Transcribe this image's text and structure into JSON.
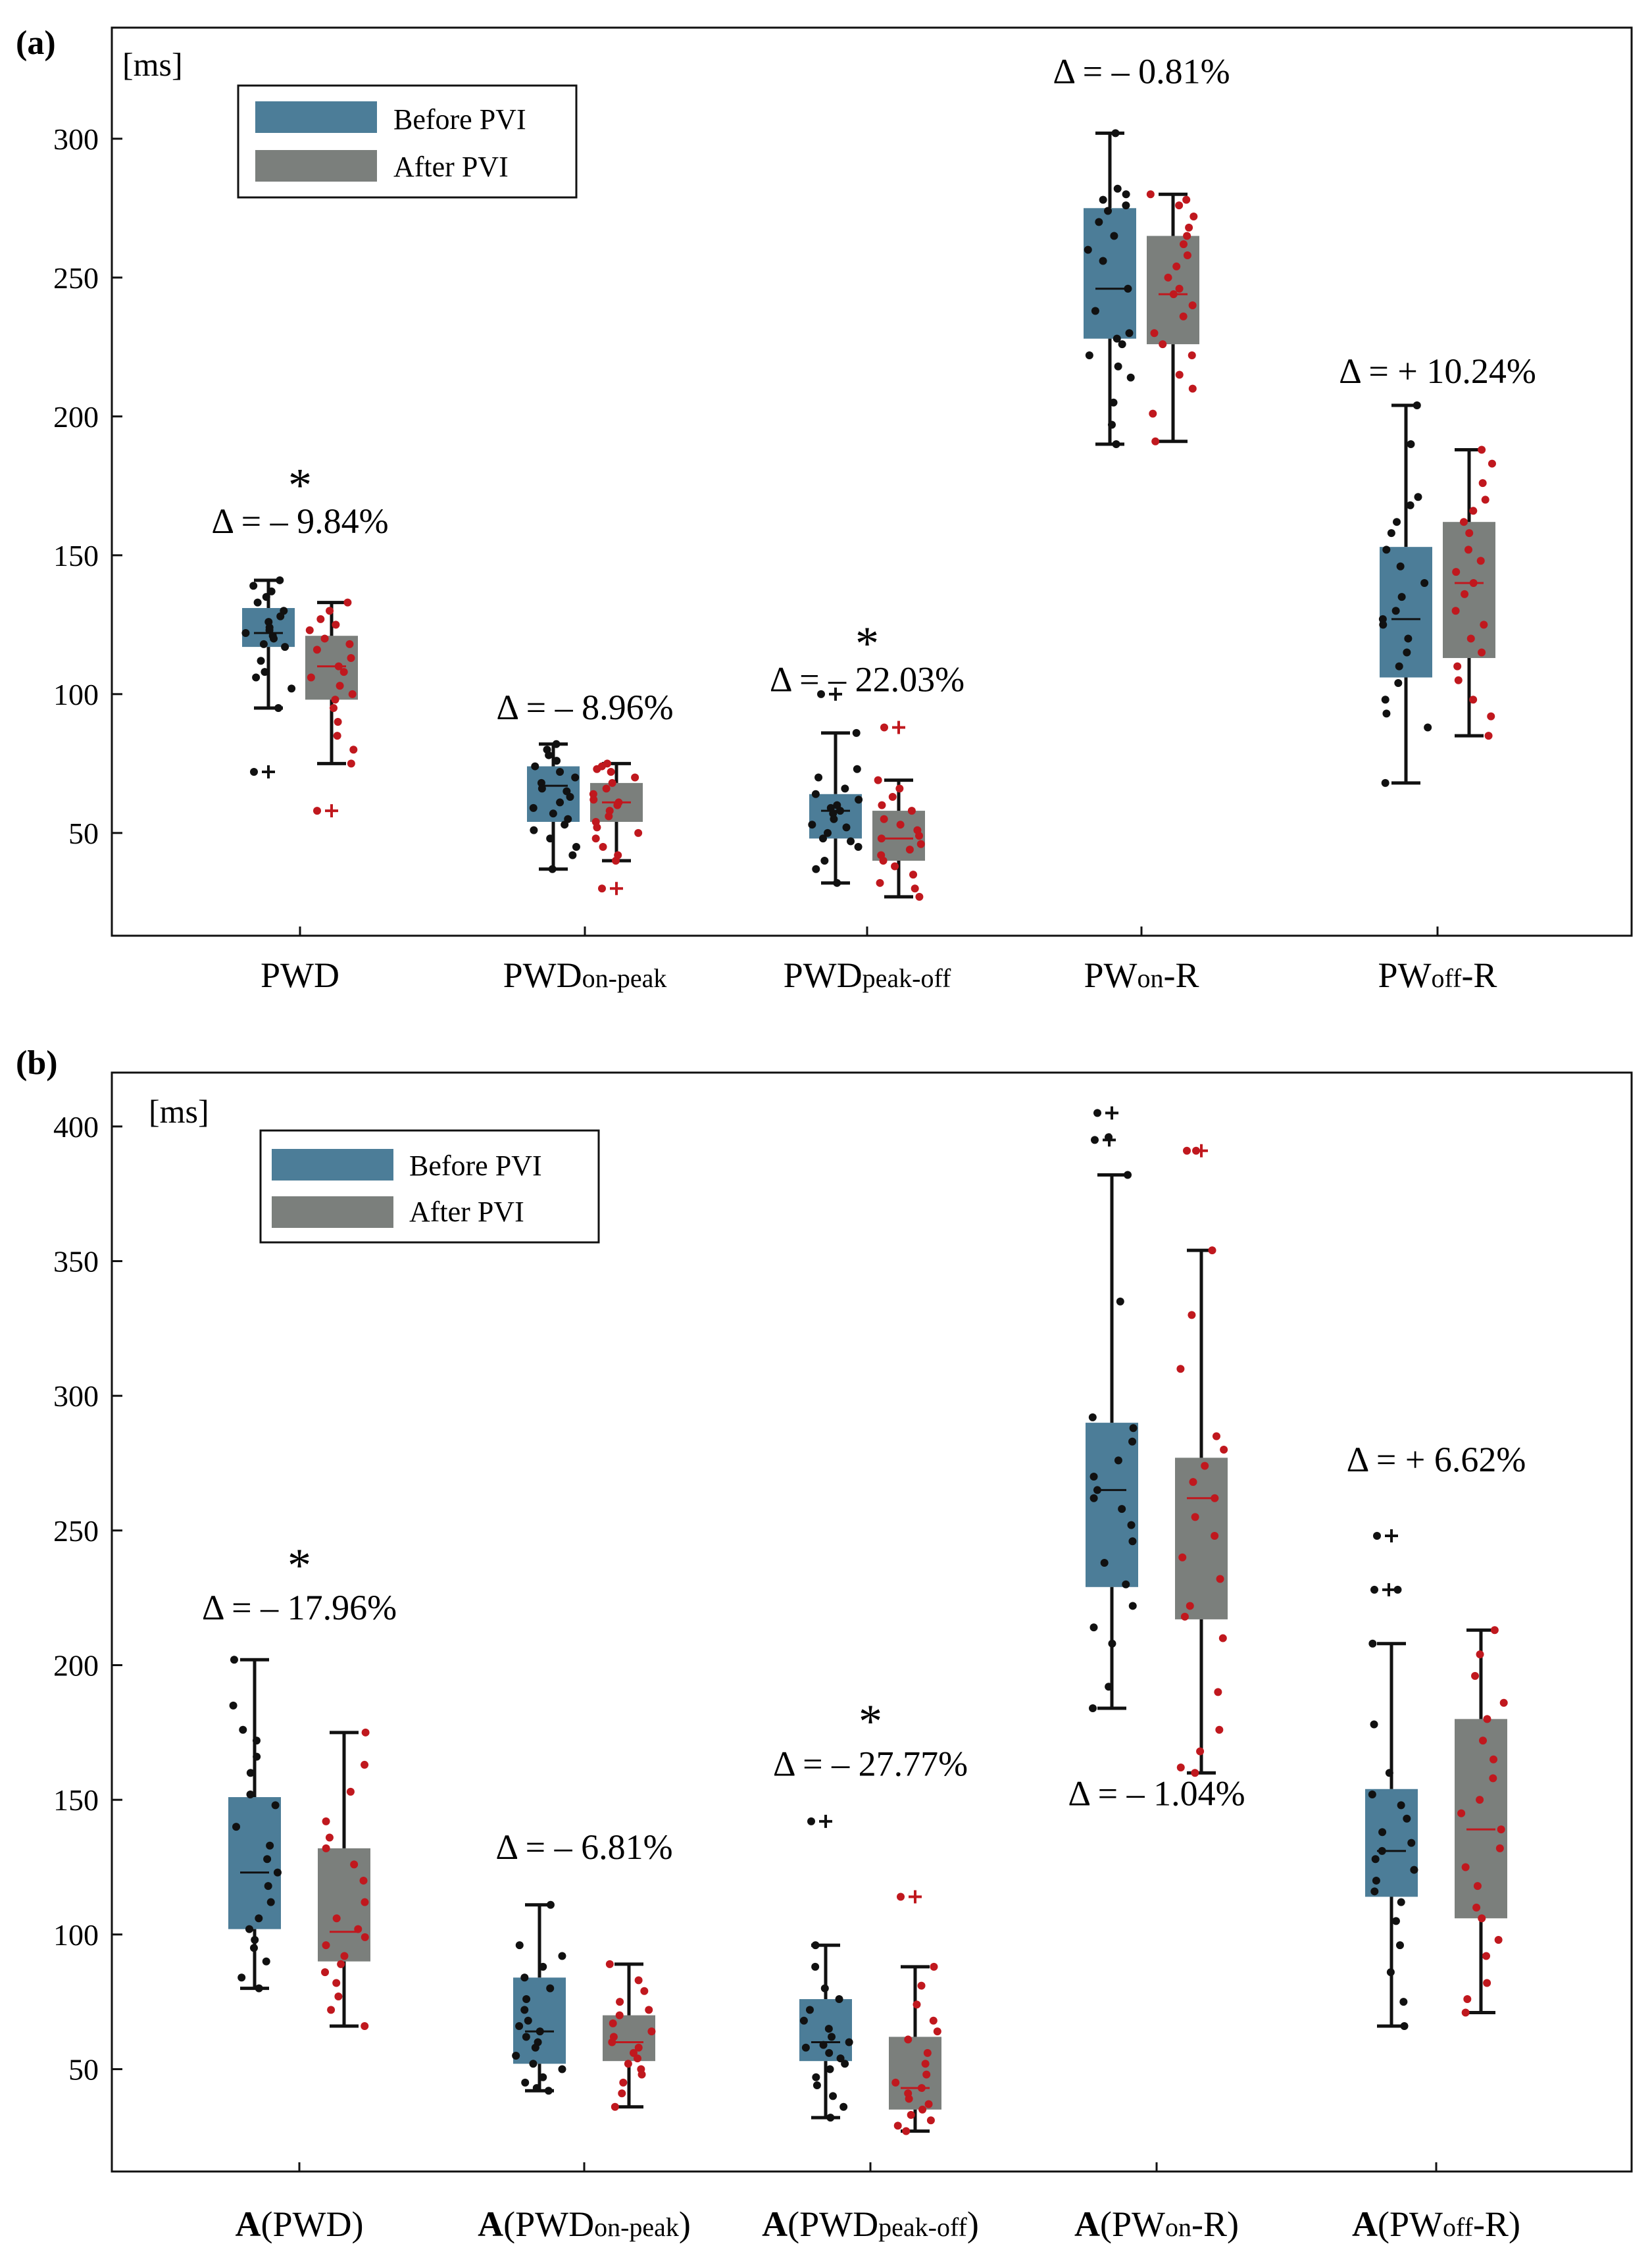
{
  "chart_data": [
    {
      "type": "boxplot",
      "panel_label": "(a)",
      "unit_label": "[ms]",
      "ylim": [
        13,
        340
      ],
      "yticks": [
        50,
        100,
        150,
        200,
        250,
        300
      ],
      "legend": {
        "position": "top-left",
        "entries": [
          "Before PVI",
          "After PVI"
        ]
      },
      "categories": [
        {
          "main": "PWD",
          "sub": "",
          "suffix": ""
        },
        {
          "main": "PWD",
          "sub": "on-peak",
          "suffix": ""
        },
        {
          "main": "PWD",
          "sub": "peak-off",
          "suffix": ""
        },
        {
          "main": "PW",
          "sub": "on",
          "suffix": "-R"
        },
        {
          "main": "PW",
          "sub": "off",
          "suffix": "-R"
        }
      ],
      "deltas": [
        {
          "text": "Δ = – 9.84%",
          "y": 158,
          "star": true,
          "star_y": 178
        },
        {
          "text": "Δ = – 8.96%",
          "y": 91,
          "star": false
        },
        {
          "text": "Δ = – 22.03%",
          "y": 101,
          "star": true,
          "star_y": 121
        },
        {
          "text": "Δ = – 0.81%",
          "y": 320,
          "star": false
        },
        {
          "text": "Δ = + 10.24%",
          "y": 212,
          "star": false
        }
      ],
      "series": [
        {
          "name": "Before PVI",
          "boxes": [
            {
              "q1": 117,
              "median": 122,
              "q3": 131,
              "wlo": 95,
              "whi": 141,
              "outliers": [
                72
              ],
              "points": [
                139,
                141,
                137,
                135,
                133,
                130,
                128,
                126,
                124,
                123,
                122,
                121,
                120,
                118,
                117,
                112,
                108,
                106,
                102,
                95
              ]
            },
            {
              "q1": 54,
              "median": 67,
              "q3": 74,
              "wlo": 37,
              "whi": 82,
              "outliers": [],
              "points": [
                82,
                80,
                78,
                76,
                74,
                72,
                70,
                68,
                66,
                65,
                63,
                61,
                59,
                57,
                55,
                53,
                51,
                48,
                45,
                42,
                37
              ]
            },
            {
              "q1": 48,
              "median": 58,
              "q3": 64,
              "wlo": 32,
              "whi": 86,
              "outliers": [
                100
              ],
              "points": [
                86,
                73,
                70,
                66,
                64,
                62,
                60,
                59,
                58,
                57,
                55,
                53,
                52,
                50,
                48,
                47,
                45,
                40,
                37,
                32
              ]
            },
            {
              "q1": 228,
              "median": 246,
              "q3": 275,
              "wlo": 190,
              "whi": 302,
              "outliers": [],
              "points": [
                302,
                282,
                280,
                278,
                276,
                274,
                270,
                265,
                260,
                256,
                246,
                238,
                230,
                228,
                226,
                222,
                218,
                214,
                205,
                197,
                190
              ]
            },
            {
              "q1": 106,
              "median": 127,
              "q3": 153,
              "wlo": 68,
              "whi": 204,
              "outliers": [],
              "points": [
                204,
                190,
                171,
                168,
                162,
                158,
                152,
                146,
                140,
                135,
                130,
                127,
                125,
                120,
                115,
                110,
                104,
                98,
                93,
                88,
                68
              ]
            }
          ]
        },
        {
          "name": "After PVI",
          "boxes": [
            {
              "q1": 98,
              "median": 110,
              "q3": 121,
              "wlo": 75,
              "whi": 133,
              "outliers": [
                58
              ],
              "points": [
                133,
                130,
                127,
                125,
                123,
                120,
                118,
                116,
                113,
                110,
                108,
                106,
                103,
                100,
                98,
                95,
                90,
                85,
                80,
                75
              ]
            },
            {
              "q1": 54,
              "median": 61,
              "q3": 68,
              "wlo": 40,
              "whi": 75,
              "outliers": [
                30
              ],
              "points": [
                75,
                74,
                73,
                72,
                70,
                68,
                66,
                64,
                62,
                61,
                60,
                58,
                56,
                54,
                52,
                50,
                48,
                45,
                42,
                40
              ]
            },
            {
              "q1": 40,
              "median": 48,
              "q3": 58,
              "wlo": 27,
              "whi": 69,
              "outliers": [
                88
              ],
              "points": [
                69,
                66,
                63,
                60,
                58,
                55,
                53,
                51,
                49,
                48,
                46,
                44,
                42,
                40,
                38,
                35,
                32,
                30,
                27
              ]
            },
            {
              "q1": 226,
              "median": 244,
              "q3": 265,
              "wlo": 191,
              "whi": 280,
              "outliers": [],
              "points": [
                280,
                278,
                276,
                272,
                268,
                265,
                262,
                258,
                254,
                250,
                246,
                244,
                240,
                236,
                230,
                226,
                222,
                215,
                210,
                201,
                191
              ]
            },
            {
              "q1": 113,
              "median": 140,
              "q3": 162,
              "wlo": 85,
              "whi": 188,
              "outliers": [],
              "points": [
                188,
                183,
                176,
                170,
                166,
                162,
                158,
                152,
                148,
                144,
                140,
                136,
                130,
                125,
                120,
                115,
                110,
                105,
                98,
                92,
                85
              ]
            }
          ]
        }
      ]
    },
    {
      "type": "boxplot",
      "panel_label": "(b)",
      "unit_label": "[ms]",
      "ylim": [
        12,
        420
      ],
      "yticks": [
        50,
        100,
        150,
        200,
        250,
        300,
        350,
        400
      ],
      "legend": {
        "position": "top-left",
        "entries": [
          "Before PVI",
          "After PVI"
        ]
      },
      "categories": [
        {
          "prefix": "A",
          "main": "(PWD",
          "sub": "",
          "suffix": ")"
        },
        {
          "prefix": "A",
          "main": "(PWD",
          "sub": "on-peak",
          "suffix": ")"
        },
        {
          "prefix": "A",
          "main": "(PWD",
          "sub": "peak-off",
          "suffix": ")"
        },
        {
          "prefix": "A",
          "main": "(PW",
          "sub": "on",
          "suffix": "-R)"
        },
        {
          "prefix": "A",
          "main": "(PW",
          "sub": "off",
          "suffix": "-R)"
        }
      ],
      "deltas": [
        {
          "text": "Δ = – 17.96%",
          "y": 217,
          "star": true,
          "star_y": 240
        },
        {
          "text": "Δ = – 6.81%",
          "y": 128,
          "star": false
        },
        {
          "text": "Δ = – 27.77%",
          "y": 159,
          "star": true,
          "star_y": 182
        },
        {
          "text": "Δ = – 1.04%",
          "y": 148,
          "star": false
        },
        {
          "text": "Δ = + 6.62%",
          "y": 272,
          "star": false
        }
      ],
      "series": [
        {
          "name": "Before PVI",
          "boxes": [
            {
              "q1": 102,
              "median": 123,
              "q3": 151,
              "wlo": 80,
              "whi": 202,
              "outliers": [],
              "points": [
                202,
                185,
                176,
                172,
                166,
                160,
                152,
                148,
                140,
                133,
                128,
                123,
                118,
                112,
                106,
                102,
                98,
                95,
                90,
                84,
                80
              ]
            },
            {
              "q1": 52,
              "median": 64,
              "q3": 84,
              "wlo": 42,
              "whi": 111,
              "outliers": [],
              "points": [
                111,
                96,
                92,
                88,
                84,
                80,
                76,
                72,
                68,
                66,
                64,
                62,
                60,
                58,
                55,
                52,
                50,
                47,
                45,
                43,
                42
              ]
            },
            {
              "q1": 53,
              "median": 60,
              "q3": 76,
              "wlo": 32,
              "whi": 96,
              "outliers": [
                142
              ],
              "points": [
                96,
                88,
                80,
                76,
                72,
                68,
                65,
                62,
                60,
                59,
                58,
                56,
                54,
                52,
                50,
                47,
                44,
                40,
                36,
                32
              ]
            },
            {
              "q1": 229,
              "median": 265,
              "q3": 290,
              "wlo": 184,
              "whi": 382,
              "outliers": [
                405,
                395
              ],
              "points": [
                396,
                382,
                335,
                292,
                288,
                283,
                276,
                270,
                265,
                262,
                258,
                252,
                246,
                238,
                230,
                222,
                214,
                208,
                192,
                184
              ]
            },
            {
              "q1": 114,
              "median": 131,
              "q3": 154,
              "wlo": 66,
              "whi": 208,
              "outliers": [
                248,
                228
              ],
              "points": [
                228,
                208,
                178,
                160,
                152,
                148,
                143,
                138,
                134,
                131,
                128,
                124,
                120,
                116,
                112,
                105,
                96,
                86,
                75,
                66
              ]
            }
          ]
        },
        {
          "name": "After PVI",
          "boxes": [
            {
              "q1": 90,
              "median": 101,
              "q3": 132,
              "wlo": 66,
              "whi": 175,
              "outliers": [],
              "points": [
                175,
                163,
                153,
                142,
                136,
                132,
                126,
                120,
                112,
                106,
                102,
                99,
                96,
                92,
                89,
                86,
                82,
                77,
                72,
                66
              ]
            },
            {
              "q1": 53,
              "median": 60,
              "q3": 70,
              "wlo": 36,
              "whi": 89,
              "outliers": [],
              "points": [
                89,
                83,
                79,
                75,
                72,
                70,
                67,
                64,
                62,
                60,
                58,
                56,
                54,
                52,
                50,
                48,
                45,
                41,
                36
              ]
            },
            {
              "q1": 35,
              "median": 43,
              "q3": 62,
              "wlo": 27,
              "whi": 88,
              "outliers": [
                114
              ],
              "points": [
                88,
                81,
                74,
                68,
                64,
                61,
                56,
                52,
                48,
                45,
                43,
                41,
                39,
                37,
                35,
                33,
                31,
                29,
                27
              ]
            },
            {
              "q1": 217,
              "median": 262,
              "q3": 277,
              "wlo": 160,
              "whi": 354,
              "outliers": [
                391
              ],
              "points": [
                391,
                354,
                330,
                310,
                285,
                280,
                274,
                268,
                262,
                255,
                248,
                240,
                232,
                222,
                218,
                210,
                190,
                176,
                168,
                162,
                160
              ]
            },
            {
              "q1": 106,
              "median": 139,
              "q3": 180,
              "wlo": 71,
              "whi": 213,
              "outliers": [],
              "points": [
                213,
                204,
                196,
                186,
                180,
                172,
                165,
                158,
                150,
                145,
                139,
                132,
                125,
                118,
                110,
                106,
                98,
                92,
                82,
                76,
                71
              ]
            }
          ]
        }
      ]
    }
  ],
  "colors": {
    "before_box": "#4c7d98",
    "after_box": "#7b7f7c",
    "before_dots": "#111111",
    "after_dots": "#c0181e",
    "axis": "#111111"
  }
}
